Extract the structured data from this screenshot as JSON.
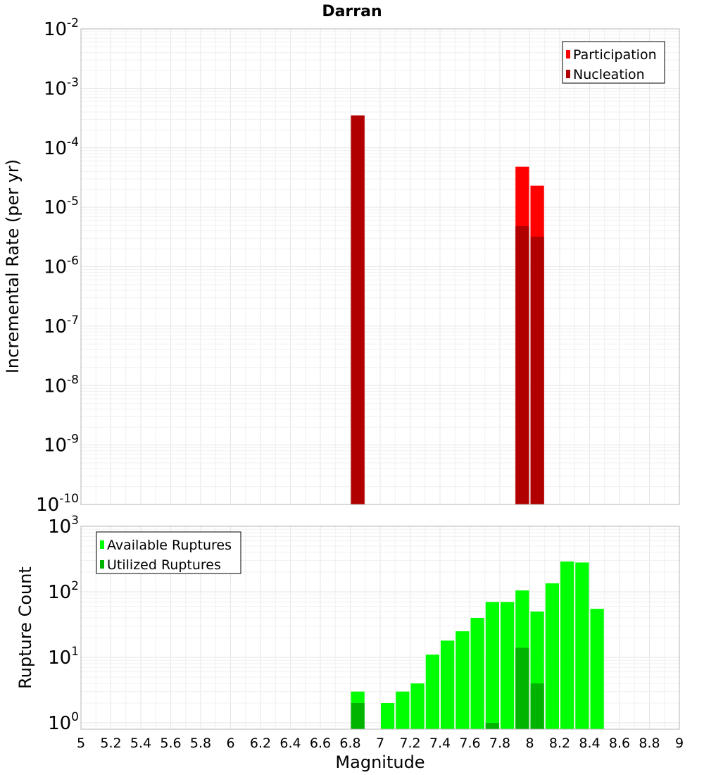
{
  "chart_data": [
    {
      "type": "bar",
      "title": "Darran",
      "xlabel": "",
      "ylabel": "Incremental Rate (per yr)",
      "y_scale": "log",
      "ylim": [
        1e-10,
        0.01
      ],
      "xlim": [
        5,
        9
      ],
      "bin_width": 0.1,
      "y_ticks": [
        "10^-10",
        "10^-9",
        "10^-8",
        "10^-7",
        "10^-6",
        "10^-5",
        "10^-4",
        "10^-3",
        "10^-2"
      ],
      "legend": {
        "position": "top-right",
        "entries": [
          "Participation",
          "Nucleation"
        ]
      },
      "series": [
        {
          "name": "Participation",
          "color": "#ff0000",
          "points": [
            {
              "x": 6.85,
              "y": 0.00035
            },
            {
              "x": 7.95,
              "y": 4.8e-05
            },
            {
              "x": 8.05,
              "y": 2.3e-05
            }
          ]
        },
        {
          "name": "Nucleation",
          "color": "#b00000",
          "points": [
            {
              "x": 6.85,
              "y": 0.00035
            },
            {
              "x": 7.95,
              "y": 4.8e-06
            },
            {
              "x": 8.05,
              "y": 3.2e-06
            }
          ]
        }
      ]
    },
    {
      "type": "bar",
      "title": "",
      "xlabel": "Magnitude",
      "ylabel": "Rupture Count",
      "y_scale": "log",
      "ylim": [
        0.8,
        1000
      ],
      "xlim": [
        5,
        9
      ],
      "bin_width": 0.1,
      "y_ticks": [
        "10^0",
        "10^1",
        "10^2",
        "10^3"
      ],
      "x_ticks": [
        "5",
        "5.2",
        "5.4",
        "5.6",
        "5.8",
        "6",
        "6.2",
        "6.4",
        "6.6",
        "6.8",
        "7",
        "7.2",
        "7.4",
        "7.6",
        "7.8",
        "8",
        "8.2",
        "8.4",
        "8.6",
        "8.8",
        "9"
      ],
      "legend": {
        "position": "top-left",
        "entries": [
          "Available Ruptures",
          "Utilized Ruptures"
        ]
      },
      "series": [
        {
          "name": "Available Ruptures",
          "color": "#00ff00",
          "points": [
            {
              "x": 6.85,
              "y": 3
            },
            {
              "x": 7.05,
              "y": 2
            },
            {
              "x": 7.15,
              "y": 3
            },
            {
              "x": 7.25,
              "y": 4
            },
            {
              "x": 7.35,
              "y": 11
            },
            {
              "x": 7.45,
              "y": 18
            },
            {
              "x": 7.55,
              "y": 25
            },
            {
              "x": 7.65,
              "y": 40
            },
            {
              "x": 7.75,
              "y": 70
            },
            {
              "x": 7.85,
              "y": 70
            },
            {
              "x": 7.95,
              "y": 105
            },
            {
              "x": 8.05,
              "y": 50
            },
            {
              "x": 8.15,
              "y": 135
            },
            {
              "x": 8.25,
              "y": 290
            },
            {
              "x": 8.35,
              "y": 280
            },
            {
              "x": 8.45,
              "y": 55
            }
          ]
        },
        {
          "name": "Utilized Ruptures",
          "color": "#00b400",
          "points": [
            {
              "x": 6.85,
              "y": 2
            },
            {
              "x": 7.75,
              "y": 1
            },
            {
              "x": 7.95,
              "y": 14
            },
            {
              "x": 8.05,
              "y": 4
            }
          ]
        }
      ]
    }
  ]
}
